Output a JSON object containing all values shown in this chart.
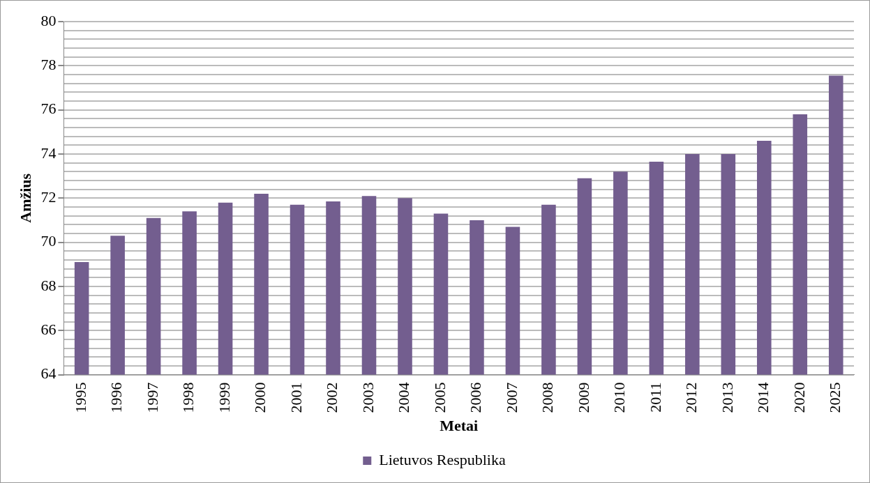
{
  "chart_data": {
    "type": "bar",
    "xlabel": "Metai",
    "ylabel": "Amžius",
    "categories": [
      "1995",
      "1996",
      "1997",
      "1998",
      "1999",
      "2000",
      "2001",
      "2002",
      "2003",
      "2004",
      "2005",
      "2006",
      "2007",
      "2008",
      "2009",
      "2010",
      "2011",
      "2012",
      "2013",
      "2014",
      "2020",
      "2025"
    ],
    "series": [
      {
        "name": "Lietuvos Respublika",
        "color": "#735e8f",
        "values": [
          69.1,
          70.3,
          71.1,
          71.4,
          71.8,
          72.2,
          71.7,
          71.85,
          72.1,
          72.0,
          71.3,
          71.0,
          70.7,
          71.7,
          72.9,
          73.2,
          73.65,
          74.0,
          74.0,
          74.6,
          75.8,
          77.55
        ]
      }
    ],
    "ylim": [
      64,
      80
    ],
    "yticks": [
      64,
      {
        "value": 64.4,
        "label": null
      },
      {
        "value": 64.8,
        "label": null
      },
      {
        "value": 65.2,
        "label": null
      },
      {
        "value": 65.6,
        "label": null
      },
      66,
      {
        "value": 66.4,
        "label": null
      },
      {
        "value": 66.8,
        "label": null
      },
      {
        "value": 67.2,
        "label": null
      },
      {
        "value": 67.6,
        "label": null
      },
      68,
      {
        "value": 68.4,
        "label": null
      },
      {
        "value": 68.8,
        "label": null
      },
      {
        "value": 69.2,
        "label": null
      },
      {
        "value": 69.6,
        "label": null
      },
      70,
      {
        "value": 70.4,
        "label": null
      },
      {
        "value": 70.8,
        "label": null
      },
      {
        "value": 71.2,
        "label": null
      },
      {
        "value": 71.6,
        "label": null
      },
      72,
      {
        "value": 72.4,
        "label": null
      },
      {
        "value": 72.8,
        "label": null
      },
      {
        "value": 73.2,
        "label": null
      },
      {
        "value": 73.6,
        "label": null
      },
      74,
      {
        "value": 74.4,
        "label": null
      },
      {
        "value": 74.8,
        "label": null
      },
      {
        "value": 75.2,
        "label": null
      },
      {
        "value": 75.6,
        "label": null
      },
      76,
      {
        "value": 76.4,
        "label": null
      },
      {
        "value": 76.8,
        "label": null
      },
      {
        "value": 77.2,
        "label": null
      },
      {
        "value": 77.6,
        "label": null
      },
      78,
      {
        "value": 78.4,
        "label": null
      },
      {
        "value": 78.8,
        "label": null
      },
      {
        "value": 79.2,
        "label": null
      },
      {
        "value": 79.6,
        "label": null
      },
      80
    ],
    "grid": "y",
    "legend": "bottom"
  }
}
